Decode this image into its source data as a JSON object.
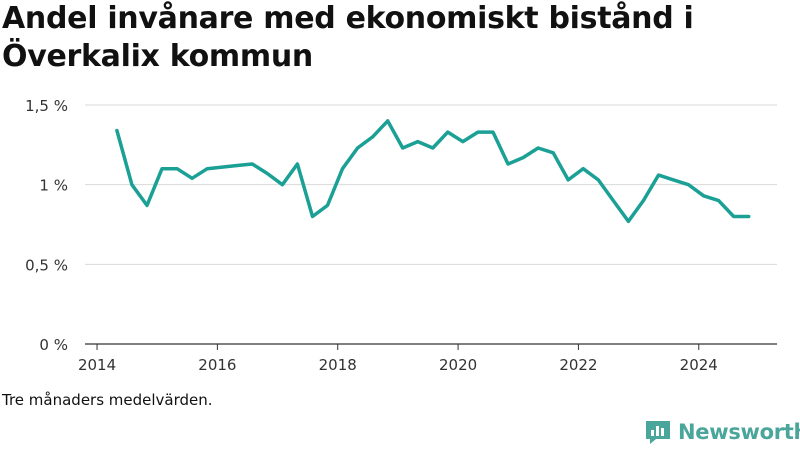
{
  "chart_data": {
    "type": "line",
    "title": "Andel invånare med ekonomiskt bistånd i Överkalix kommun",
    "xlabel": "",
    "ylabel": "",
    "x_range": [
      2013.8,
      2025.3
    ],
    "ylim": [
      0,
      1.5
    ],
    "x_ticks": [
      {
        "value": 2014,
        "label": "2014"
      },
      {
        "value": 2016,
        "label": "2016"
      },
      {
        "value": 2018,
        "label": "2018"
      },
      {
        "value": 2020,
        "label": "2020"
      },
      {
        "value": 2022,
        "label": "2022"
      },
      {
        "value": 2024,
        "label": "2024"
      }
    ],
    "y_ticks": [
      {
        "value": 0,
        "label": "0 %"
      },
      {
        "value": 0.5,
        "label": "0,5 %"
      },
      {
        "value": 1.0,
        "label": "1 %"
      },
      {
        "value": 1.5,
        "label": "1,5 %"
      }
    ],
    "grid": "horizontal",
    "color": "#1aa095",
    "series": [
      {
        "x": [
          2014.33,
          2014.58,
          2014.83,
          2015.08,
          2015.33,
          2015.58,
          2015.83,
          2016.08,
          2016.33,
          2016.58,
          2016.83,
          2017.08,
          2017.33,
          2017.58,
          2017.83,
          2018.08,
          2018.33,
          2018.58,
          2018.83,
          2019.08,
          2019.33,
          2019.58,
          2019.83,
          2020.08,
          2020.33,
          2020.58,
          2020.83,
          2021.08,
          2021.33,
          2021.58,
          2021.83,
          2022.08,
          2022.33,
          2022.58,
          2022.83,
          2023.08,
          2023.33,
          2023.58,
          2023.83,
          2024.08,
          2024.33,
          2024.58,
          2024.83
        ],
        "values": [
          1.34,
          1.0,
          0.87,
          1.1,
          1.1,
          1.04,
          1.1,
          1.11,
          1.12,
          1.13,
          1.07,
          1.0,
          1.13,
          0.8,
          0.87,
          1.1,
          1.23,
          1.3,
          1.4,
          1.23,
          1.27,
          1.23,
          1.33,
          1.27,
          1.33,
          1.33,
          1.13,
          1.17,
          1.23,
          1.2,
          1.03,
          1.1,
          1.03,
          0.9,
          0.77,
          0.9,
          1.06,
          1.03,
          1.0,
          0.93,
          0.9,
          0.8,
          0.8
        ]
      }
    ]
  },
  "caption": "Tre månaders medelvärden.",
  "brand": {
    "name": "Newsworthy",
    "icon": "newsworthy-logo-icon",
    "color": "#4aa59a"
  }
}
